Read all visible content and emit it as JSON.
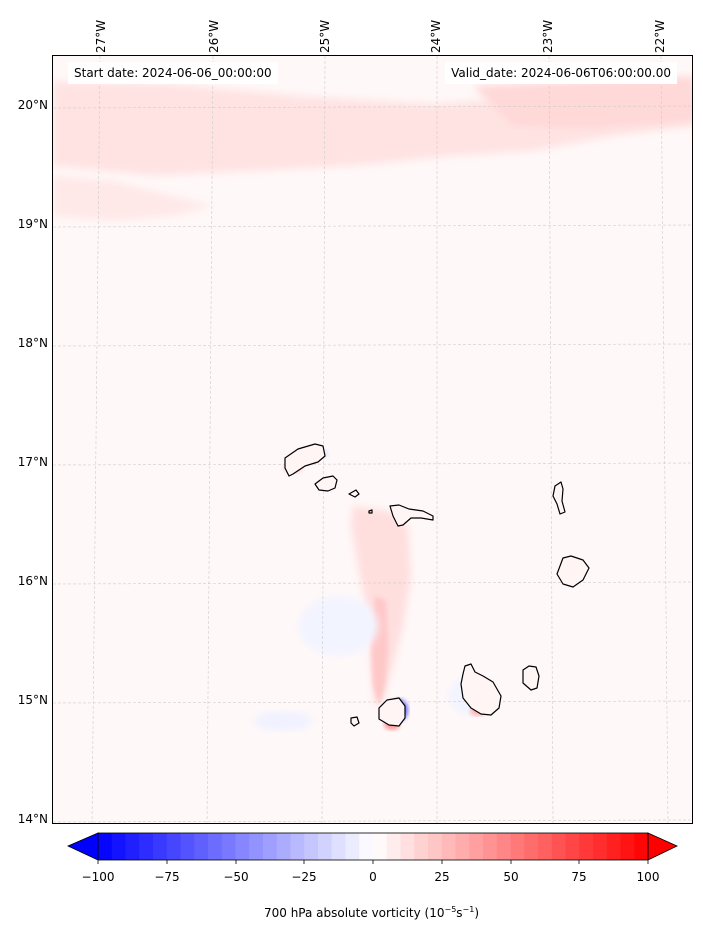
{
  "header": {
    "start_date": "Start date: 2024-06-06_00:00:00",
    "valid_date": "Valid_date: 2024-06-06T06:00:00.00"
  },
  "map": {
    "longitude_labels": [
      "27°W",
      "26°W",
      "25°W",
      "24°W",
      "23°W",
      "22°W"
    ],
    "latitude_labels": [
      "20°N",
      "19°N",
      "18°N",
      "17°N",
      "16°N",
      "15°N",
      "14°N"
    ],
    "islands": [
      "Santo Antão",
      "São Vicente",
      "Santa Luzia",
      "São Nicolau",
      "Sal",
      "Boa Vista",
      "Maio",
      "Santiago",
      "Fogo",
      "Brava"
    ]
  },
  "colorbar": {
    "ticks": [
      "−100",
      "−75",
      "−50",
      "−25",
      "0",
      "25",
      "50",
      "75",
      "100"
    ],
    "min": -100,
    "max": 100,
    "colormap": "bwr",
    "label_main": "700 hPa absolute vorticity (10",
    "label_sup1": "−5",
    "label_mid": "s",
    "label_sup2": "−1",
    "label_end": ")"
  },
  "colors": {
    "negative": "#0000ff",
    "zero": "#ffffff",
    "positive": "#ff0000",
    "coastline": "#000000"
  }
}
